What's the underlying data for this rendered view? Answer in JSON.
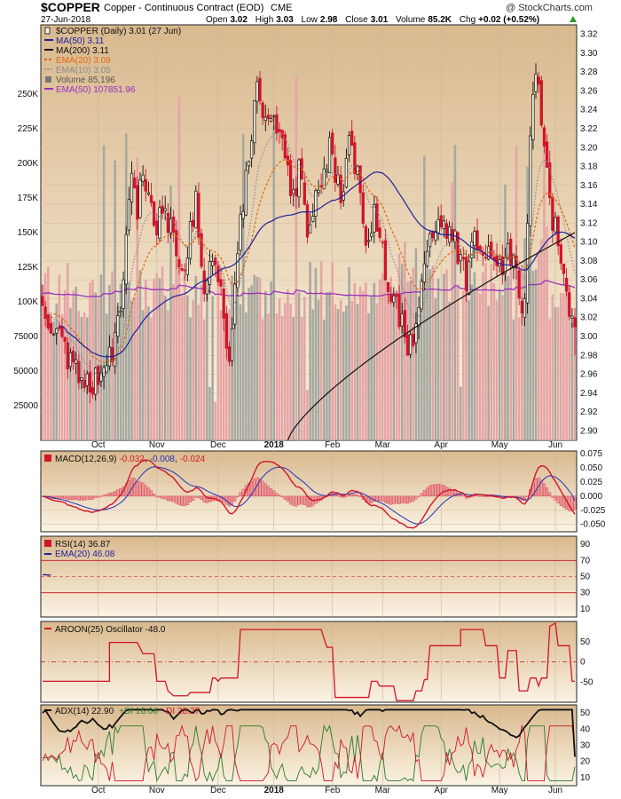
{
  "header": {
    "symbol": "$COPPER",
    "name": "Copper - Continuous Contract (EOD)",
    "exchange": "CME",
    "watermark": "@ StockCharts.com",
    "date": "27-Jun-2018",
    "open_label": "Open",
    "open": "3.02",
    "high_label": "High",
    "high": "3.03",
    "low_label": "Low",
    "low": "2.98",
    "close_label": "Close",
    "close": "3.01",
    "volume_label": "Volume",
    "volume": "85.2K",
    "chg_label": "Chg",
    "chg": "+0.02 (+0.52%)"
  },
  "price_legend": [
    {
      "text": "$COPPER (Daily) 3.01 (27 Jun)",
      "color": "#111111",
      "swatch": "candle"
    },
    {
      "text": "MA(50) 3.11",
      "color": "#1f1f9e",
      "swatch": "line"
    },
    {
      "text": "MA(200) 3.11",
      "color": "#111111",
      "swatch": "line"
    },
    {
      "text": "EMA(20) 3.09",
      "color": "#e06a10",
      "swatch": "dash"
    },
    {
      "text": "EMA(10) 3.05",
      "color": "#8a8a8a",
      "swatch": "dot"
    },
    {
      "text": "Volume 85,196",
      "color": "#777777",
      "swatch": "bar"
    },
    {
      "text": "EMA(50) 107851.96",
      "color": "#9a2fc0",
      "swatch": "line"
    }
  ],
  "macd_legend": {
    "label": "MACD(12,26,9)",
    "v1": "-0.032",
    "v2": "-0.008",
    "v3": "-0.024"
  },
  "rsi_legend": {
    "label": "RSI(14) 36.87",
    "ema": "EMA(20) 46.08"
  },
  "aroon_legend": {
    "label": "AROON(25) Oscillator -48.0"
  },
  "adx_legend": {
    "label": "ADX(14) 22.90",
    "pdi": "+DI 16.66",
    "mdi": "-DI 28.27"
  },
  "colors": {
    "panel_bg_top": "#d9b98e",
    "panel_bg_bottom": "#fbf3e3",
    "up_candle": "#111111",
    "down_candle": "#d0152b",
    "ma50": "#1f1f9e",
    "ma200": "#111111",
    "ema20": "#e06a10",
    "ema10": "#8a8a8a",
    "vol_up": "#a8a8a0",
    "vol_down": "#e6a5a5",
    "vol_ema": "#9a2fc0",
    "macd": "#d0152b",
    "signal": "#2233bb",
    "hist": "#d0152b",
    "rsi": "#e03a10",
    "rsi_ema": "#1f1f9e",
    "aroon": "#d0152b",
    "adx": "#111111",
    "pdi": "#2a7a2a",
    "mdi": "#d0152b"
  },
  "chart_data": [
    {
      "type": "candlestick",
      "title": "$COPPER (Daily)",
      "x_tick_labels": [
        "Oct",
        "Nov",
        "Dec",
        "2018",
        "Feb",
        "Mar",
        "Apr",
        "May",
        "Jun"
      ],
      "y_ticks": [
        "2.90",
        "2.92",
        "2.94",
        "2.96",
        "2.98",
        "3.00",
        "3.02",
        "3.04",
        "3.06",
        "3.08",
        "3.10",
        "3.12",
        "3.14",
        "3.16",
        "3.18",
        "3.20",
        "3.22",
        "3.24",
        "3.26",
        "3.28",
        "3.30",
        "3.32"
      ],
      "ylim": [
        2.89,
        3.33
      ],
      "close_anchors": [
        [
          0,
          3.04
        ],
        [
          5,
          3.0
        ],
        [
          10,
          2.97
        ],
        [
          15,
          2.95
        ],
        [
          20,
          2.96
        ],
        [
          25,
          2.99
        ],
        [
          28,
          3.03
        ],
        [
          30,
          3.1
        ],
        [
          32,
          3.19
        ],
        [
          34,
          3.14
        ],
        [
          37,
          3.17
        ],
        [
          40,
          3.11
        ],
        [
          43,
          3.14
        ],
        [
          46,
          3.12
        ],
        [
          49,
          3.07
        ],
        [
          52,
          3.09
        ],
        [
          55,
          3.15
        ],
        [
          58,
          3.06
        ],
        [
          61,
          3.08
        ],
        [
          64,
          3.05
        ],
        [
          67,
          2.97
        ],
        [
          69,
          3.05
        ],
        [
          71,
          3.12
        ],
        [
          74,
          3.19
        ],
        [
          77,
          3.27
        ],
        [
          80,
          3.22
        ],
        [
          83,
          3.22
        ],
        [
          86,
          3.2
        ],
        [
          89,
          3.15
        ],
        [
          92,
          3.17
        ],
        [
          95,
          3.11
        ],
        [
          98,
          3.14
        ],
        [
          101,
          3.18
        ],
        [
          104,
          3.2
        ],
        [
          107,
          3.14
        ],
        [
          110,
          3.21
        ],
        [
          113,
          3.17
        ],
        [
          116,
          3.1
        ],
        [
          119,
          3.13
        ],
        [
          122,
          3.09
        ],
        [
          125,
          3.05
        ],
        [
          128,
          3.02
        ],
        [
          131,
          2.98
        ],
        [
          134,
          3.02
        ],
        [
          137,
          3.06
        ],
        [
          140,
          3.12
        ],
        [
          143,
          3.1
        ],
        [
          146,
          3.12
        ],
        [
          149,
          3.09
        ],
        [
          152,
          3.06
        ],
        [
          155,
          3.1
        ],
        [
          158,
          3.08
        ],
        [
          161,
          3.09
        ],
        [
          164,
          3.07
        ],
        [
          167,
          3.1
        ],
        [
          170,
          3.06
        ],
        [
          173,
          3.03
        ],
        [
          175,
          3.21
        ],
        [
          177,
          3.28
        ],
        [
          179,
          3.23
        ],
        [
          181,
          3.19
        ],
        [
          183,
          3.12
        ],
        [
          185,
          3.1
        ],
        [
          187,
          3.05
        ],
        [
          189,
          3.02
        ],
        [
          191,
          3.01
        ]
      ]
    },
    {
      "type": "bar",
      "title": "Volume",
      "y_ticks": [
        "25000",
        "50000",
        "75000",
        "100K",
        "125K",
        "150K",
        "175K",
        "200K",
        "225K",
        "250K"
      ],
      "ylim": [
        0,
        300000
      ],
      "last": 85196,
      "ema50": 107851.96
    },
    {
      "type": "line",
      "title": "MACD(12,26,9)",
      "y_ticks": [
        "-0.050",
        "-0.025",
        "0.000",
        "0.025",
        "0.050",
        "0.075"
      ],
      "ylim": [
        -0.063,
        0.08
      ],
      "last": {
        "macd": -0.032,
        "signal": -0.008,
        "hist": -0.024
      }
    },
    {
      "type": "line",
      "title": "RSI(14)",
      "y_ticks": [
        "10",
        "30",
        "50",
        "70",
        "90"
      ],
      "ylim": [
        0,
        100
      ],
      "reference_lines": [
        70,
        30
      ],
      "last": {
        "rsi": 36.87,
        "ema20": 46.08
      }
    },
    {
      "type": "line",
      "title": "AROON(25) Oscillator",
      "y_ticks": [
        "-50",
        "0",
        "50"
      ],
      "ylim": [
        -100,
        100
      ],
      "reference_lines": [
        0
      ],
      "last": -48.0
    },
    {
      "type": "line",
      "title": "ADX(14)",
      "y_ticks": [
        "10",
        "20",
        "30",
        "40",
        "50"
      ],
      "ylim": [
        5,
        55
      ],
      "last": {
        "adx": 22.9,
        "pdi": 16.66,
        "mdi": 28.27
      }
    }
  ]
}
